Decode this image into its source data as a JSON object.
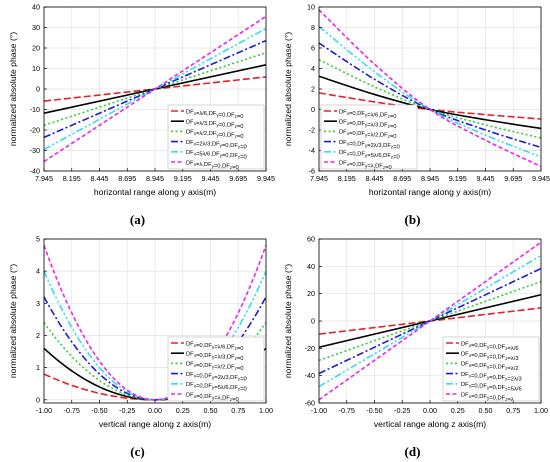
{
  "series_colors": [
    "#e8202a",
    "#000000",
    "#33cc33",
    "#1c1cd8",
    "#33ddee",
    "#ee22ee"
  ],
  "series_styles": [
    "dash",
    "solid",
    "dot",
    "dashdot",
    "dashdotdot",
    "shortdash"
  ],
  "chart_data": [
    {
      "type": "line",
      "caption": "(a)",
      "xlabel": "horizontal range along y axis(m)",
      "ylabel": "normalized absolute phase (°)",
      "xlim": [
        7.945,
        9.945
      ],
      "ylim": [
        -40,
        40
      ],
      "xticks": [
        "7.945",
        "8.195",
        "8.445",
        "8.695",
        "8.945",
        "9.195",
        "9.445",
        "9.695",
        "9.945"
      ],
      "yticks": [
        "-40",
        "-30",
        "-20",
        "-10",
        "0",
        "10",
        "20",
        "30",
        "40"
      ],
      "legend_position": "bottom-right",
      "series": [
        {
          "name": "DFₓ=λ/6,DF_y=0,DF_z=0",
          "x": [
            7.945,
            9.945
          ],
          "y": [
            -5.9,
            5.9
          ]
        },
        {
          "name": "DFₓ=λ/3,DF_y=0,DF_z=0",
          "x": [
            7.945,
            9.945
          ],
          "y": [
            -11.8,
            11.8
          ]
        },
        {
          "name": "DFₓ=λ/2,DF_y=0,DF_z=0",
          "x": [
            7.945,
            9.945
          ],
          "y": [
            -17.7,
            17.7
          ]
        },
        {
          "name": "DFₓ=2λ/3,DF_y=0,DF_z=0",
          "x": [
            7.945,
            9.945
          ],
          "y": [
            -23.6,
            23.6
          ]
        },
        {
          "name": "DFₓ=5λ/6,DF_y=0,DF_z=0",
          "x": [
            7.945,
            9.945
          ],
          "y": [
            -29.5,
            29.5
          ]
        },
        {
          "name": "DFₓ=λ,DF_y=0,DF_z=0",
          "x": [
            7.945,
            9.945
          ],
          "y": [
            -35.4,
            35.4
          ]
        }
      ]
    },
    {
      "type": "line",
      "caption": "(b)",
      "xlabel": "horizontal range along y axis(m)",
      "ylabel": "normalized absolute phase (°)",
      "xlim": [
        7.945,
        9.945
      ],
      "ylim": [
        -6,
        10
      ],
      "xticks": [
        "7.945",
        "8.195",
        "8.445",
        "8.695",
        "8.945",
        "9.195",
        "9.445",
        "9.695",
        "9.945"
      ],
      "yticks": [
        "-6",
        "-4",
        "-2",
        "0",
        "2",
        "4",
        "6",
        "8",
        "10"
      ],
      "legend_position": "bottom-left",
      "series": [
        {
          "name": "DFₓ=0,DF_y=λ/6,DF_z=0",
          "x": [
            7.945,
            8.445,
            8.945,
            9.445,
            9.945
          ],
          "y": [
            1.62,
            0.74,
            0,
            -0.5,
            -0.93
          ]
        },
        {
          "name": "DFₓ=0,DF_y=λ/3,DF_z=0",
          "x": [
            7.945,
            8.445,
            8.945,
            9.445,
            9.945
          ],
          "y": [
            3.24,
            1.47,
            0,
            -1.0,
            -1.85
          ]
        },
        {
          "name": "DFₓ=0,DF_y=λ/2,DF_z=0",
          "x": [
            7.945,
            8.445,
            8.945,
            9.445,
            9.945
          ],
          "y": [
            4.86,
            2.21,
            0,
            -1.5,
            -2.78
          ]
        },
        {
          "name": "DFₓ=0,DF_y=2λ/3,DF_z=0",
          "x": [
            7.945,
            8.445,
            8.945,
            9.445,
            9.945
          ],
          "y": [
            6.48,
            2.95,
            0,
            -2.0,
            -3.7
          ]
        },
        {
          "name": "DFₓ=0,DF_y=5λ/6,DF_z=0",
          "x": [
            7.945,
            8.445,
            8.945,
            9.445,
            9.945
          ],
          "y": [
            8.1,
            3.68,
            0,
            -2.5,
            -4.63
          ]
        },
        {
          "name": "DFₓ=0,DF_y=λ,DF_z=0",
          "x": [
            7.945,
            8.445,
            8.945,
            9.445,
            9.945
          ],
          "y": [
            9.72,
            4.42,
            0,
            -3.0,
            -5.55
          ]
        }
      ]
    },
    {
      "type": "line",
      "caption": "(c)",
      "xlabel": "vertical range along z axis(m)",
      "ylabel": "normalized absolute phase (°)",
      "xlim": [
        -1.0,
        1.0
      ],
      "ylim": [
        -0.1,
        5
      ],
      "xticks": [
        "-1.00",
        "-0.75",
        "-0.50",
        "-0.25",
        "0.00",
        "0.25",
        "0.50",
        "0.75",
        "1.00"
      ],
      "yticks": [
        "0",
        "1",
        "2",
        "3",
        "4",
        "5"
      ],
      "legend_position": "bottom-right",
      "series": [
        {
          "name": "DFₓ=0,DF_y=λ/6,DF_z=0",
          "x": [
            -1.0,
            -0.75,
            -0.5,
            -0.25,
            0.0,
            0.25,
            0.5,
            0.75,
            1.0
          ],
          "y": [
            0.8,
            0.45,
            0.2,
            0.05,
            0,
            0.05,
            0.2,
            0.45,
            0.8
          ]
        },
        {
          "name": "DFₓ=0,DF_y=λ/3,DF_z=0",
          "x": [
            -1.0,
            -0.75,
            -0.5,
            -0.25,
            0.0,
            0.25,
            0.5,
            0.75,
            1.0
          ],
          "y": [
            1.6,
            0.9,
            0.4,
            0.1,
            0,
            0.1,
            0.4,
            0.9,
            1.6
          ]
        },
        {
          "name": "DFₓ=0,DF_y=λ/2,DF_z=0",
          "x": [
            -1.0,
            -0.75,
            -0.5,
            -0.25,
            0.0,
            0.25,
            0.5,
            0.75,
            1.0
          ],
          "y": [
            2.4,
            1.35,
            0.6,
            0.15,
            0,
            0.15,
            0.6,
            1.35,
            2.4
          ]
        },
        {
          "name": "DFₓ=0,DF_y=2λ/3,DF_z=0",
          "x": [
            -1.0,
            -0.75,
            -0.5,
            -0.25,
            0.0,
            0.25,
            0.5,
            0.75,
            1.0
          ],
          "y": [
            3.2,
            1.8,
            0.8,
            0.2,
            0,
            0.2,
            0.8,
            1.8,
            3.2
          ]
        },
        {
          "name": "DFₓ=0,DF_y=5λ/6,DF_z=0",
          "x": [
            -1.0,
            -0.75,
            -0.5,
            -0.25,
            0.0,
            0.25,
            0.5,
            0.75,
            1.0
          ],
          "y": [
            4.0,
            2.25,
            1.0,
            0.25,
            0,
            0.25,
            1.0,
            2.25,
            4.0
          ]
        },
        {
          "name": "DFₓ=0,DF_y=λ,DF_z=0",
          "x": [
            -1.0,
            -0.75,
            -0.5,
            -0.25,
            0.0,
            0.25,
            0.5,
            0.75,
            1.0
          ],
          "y": [
            4.8,
            2.7,
            1.2,
            0.3,
            0,
            0.3,
            1.2,
            2.7,
            4.8
          ]
        }
      ]
    },
    {
      "type": "line",
      "caption": "(d)",
      "xlabel": "vertical range along z axis(m)",
      "ylabel": "normalized absolute phase (°)",
      "xlim": [
        -1.0,
        1.0
      ],
      "ylim": [
        -60,
        60
      ],
      "xticks": [
        "-1.00",
        "-0.75",
        "-0.50",
        "-0.25",
        "0.00",
        "0.25",
        "0.50",
        "0.75",
        "1.00"
      ],
      "yticks": [
        "-60",
        "-40",
        "-20",
        "0",
        "20",
        "40",
        "60"
      ],
      "legend_position": "bottom-right",
      "series": [
        {
          "name": "DFₓ=0,DF_y=0,DF_z=λ/6",
          "x": [
            -1.0,
            1.0
          ],
          "y": [
            -9.6,
            9.6
          ]
        },
        {
          "name": "DFₓ=0,DF_y=0,DF_z=λ/3",
          "x": [
            -1.0,
            1.0
          ],
          "y": [
            -19.2,
            19.2
          ]
        },
        {
          "name": "DFₓ=0,DF_y=0,DF_z=λ/2",
          "x": [
            -1.0,
            1.0
          ],
          "y": [
            -28.8,
            28.8
          ]
        },
        {
          "name": "DFₓ=0,DF_y=0,DF_z=2λ/3",
          "x": [
            -1.0,
            1.0
          ],
          "y": [
            -38.4,
            38.4
          ]
        },
        {
          "name": "DFₓ=0,DF_y=0,DF_z=5λ/6",
          "x": [
            -1.0,
            1.0
          ],
          "y": [
            -48.0,
            48.0
          ]
        },
        {
          "name": "DFₓ=0,DF_y=0,DF_z=λ",
          "x": [
            -1.0,
            1.0
          ],
          "y": [
            -57.6,
            57.6
          ]
        }
      ]
    }
  ]
}
